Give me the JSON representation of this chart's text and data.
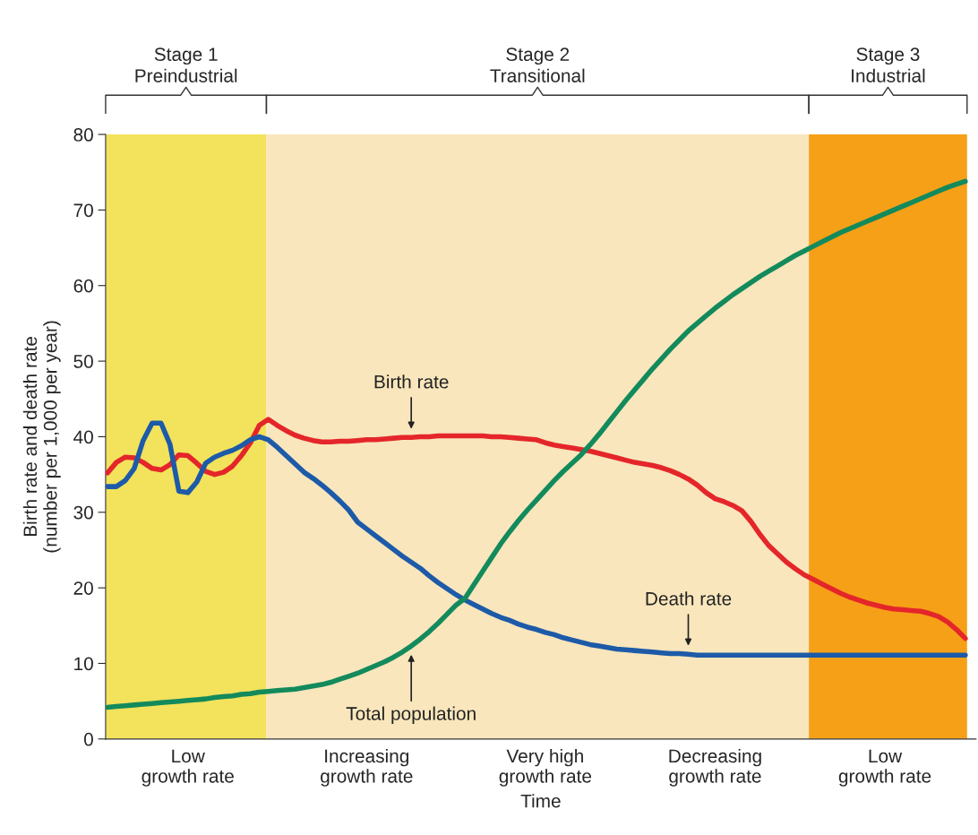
{
  "chart_data": {
    "type": "line",
    "ylabel": "Birth rate and death rate\n(number per 1,000 per year)",
    "xlabel": "Time",
    "categories": [
      null,
      null,
      null,
      null,
      null,
      null,
      null,
      null,
      null,
      "Low\ngrowth rate",
      null,
      null,
      null,
      null,
      null,
      null,
      null,
      null,
      null,
      null,
      null,
      null,
      null,
      null,
      null,
      null,
      null,
      null,
      null,
      "Increasing\ngrowth rate",
      null,
      null,
      null,
      null,
      null,
      null,
      null,
      null,
      null,
      null,
      null,
      null,
      null,
      null,
      null,
      null,
      null,
      null,
      null,
      "Very high\ngrowth rate",
      null,
      null,
      null,
      null,
      null,
      null,
      null,
      null,
      null,
      null,
      null,
      null,
      null,
      null,
      null,
      null,
      null,
      null,
      "Decreasing\ngrowth rate",
      null,
      null,
      null,
      null,
      null,
      null,
      null,
      null,
      null,
      null,
      null,
      null,
      null,
      null,
      null,
      null,
      null,
      null,
      "Low\ngrowth rate",
      null,
      null,
      null,
      null,
      null,
      null,
      null,
      null,
      null
    ],
    "series": [
      {
        "name": "Birth rate",
        "color": "#e4262a",
        "values": [
          35.2,
          36.6,
          37.3,
          37.2,
          36.6,
          35.8,
          35.6,
          36.3,
          37.6,
          37.5,
          36.5,
          35.4,
          35.0,
          35.3,
          36.1,
          37.5,
          39.2,
          41.5,
          42.3,
          41.5,
          40.8,
          40.2,
          39.8,
          39.5,
          39.3,
          39.3,
          39.4,
          39.4,
          39.5,
          39.6,
          39.6,
          39.7,
          39.8,
          39.9,
          39.9,
          40.0,
          40.0,
          40.1,
          40.1,
          40.1,
          40.1,
          40.1,
          40.1,
          40.0,
          40.0,
          39.9,
          39.8,
          39.7,
          39.6,
          39.2,
          38.9,
          38.7,
          38.5,
          38.3,
          38.1,
          37.8,
          37.5,
          37.2,
          36.9,
          36.6,
          36.4,
          36.2,
          35.9,
          35.5,
          35.0,
          34.4,
          33.6,
          32.6,
          31.8,
          31.4,
          30.9,
          30.2,
          28.8,
          27.1,
          25.6,
          24.5,
          23.4,
          22.5,
          21.7,
          21.1,
          20.5,
          19.9,
          19.3,
          18.8,
          18.4,
          18.0,
          17.7,
          17.4,
          17.2,
          17.1,
          17.0,
          16.9,
          16.6,
          16.2,
          15.5,
          14.5,
          13.3
        ]
      },
      {
        "name": "Death rate",
        "color": "#1d5aa8",
        "values": [
          33.4,
          33.4,
          34.2,
          35.8,
          39.5,
          41.8,
          41.8,
          39.0,
          32.8,
          32.6,
          34.0,
          36.5,
          37.3,
          37.8,
          38.2,
          38.8,
          39.6,
          40.0,
          39.6,
          38.6,
          37.5,
          36.4,
          35.3,
          34.5,
          33.6,
          32.6,
          31.5,
          30.3,
          28.7,
          27.8,
          26.9,
          26.0,
          25.1,
          24.2,
          23.4,
          22.6,
          21.6,
          20.7,
          19.9,
          19.1,
          18.4,
          17.8,
          17.2,
          16.6,
          16.1,
          15.7,
          15.2,
          14.8,
          14.5,
          14.1,
          13.8,
          13.4,
          13.1,
          12.8,
          12.5,
          12.3,
          12.1,
          11.9,
          11.8,
          11.7,
          11.6,
          11.5,
          11.4,
          11.3,
          11.3,
          11.2,
          11.1,
          11.1,
          11.1,
          11.1,
          11.1,
          11.1,
          11.1,
          11.1,
          11.1,
          11.1,
          11.1,
          11.1,
          11.1,
          11.1,
          11.1,
          11.1,
          11.1,
          11.1,
          11.1,
          11.1,
          11.1,
          11.1,
          11.1,
          11.1,
          11.1,
          11.1,
          11.1,
          11.1,
          11.1,
          11.1,
          11.1
        ]
      },
      {
        "name": "Total population",
        "color": "#138a5c",
        "values": [
          4.2,
          4.3,
          4.4,
          4.5,
          4.6,
          4.7,
          4.8,
          4.9,
          5.0,
          5.1,
          5.2,
          5.3,
          5.5,
          5.6,
          5.7,
          5.9,
          6.0,
          6.2,
          6.3,
          6.4,
          6.5,
          6.6,
          6.8,
          7.0,
          7.2,
          7.5,
          7.9,
          8.3,
          8.7,
          9.2,
          9.7,
          10.2,
          10.8,
          11.5,
          12.3,
          13.2,
          14.2,
          15.3,
          16.5,
          17.7,
          18.6,
          20.4,
          22.2,
          24.0,
          25.8,
          27.4,
          28.9,
          30.3,
          31.6,
          32.9,
          34.2,
          35.4,
          36.5,
          37.6,
          38.9,
          40.3,
          41.8,
          43.3,
          44.8,
          46.2,
          47.6,
          49.0,
          50.3,
          51.6,
          52.8,
          54.0,
          55.0,
          56.0,
          57.0,
          57.9,
          58.8,
          59.6,
          60.4,
          61.2,
          61.9,
          62.6,
          63.3,
          64.0,
          64.6,
          65.2,
          65.8,
          66.4,
          67.0,
          67.5,
          68.0,
          68.5,
          69.0,
          69.5,
          70.0,
          70.5,
          71.0,
          71.5,
          72.0,
          72.5,
          73.0,
          73.4,
          73.8
        ]
      }
    ],
    "ylim": [
      0,
      80
    ],
    "yticks": [
      0,
      10,
      20,
      30,
      40,
      50,
      60,
      70,
      80
    ],
    "annotations": [
      "Stage 1\nPreindustrial",
      "Stage 2\nTransitional",
      "Stage 3\nIndustrial"
    ],
    "grid": false,
    "legend": false
  }
}
